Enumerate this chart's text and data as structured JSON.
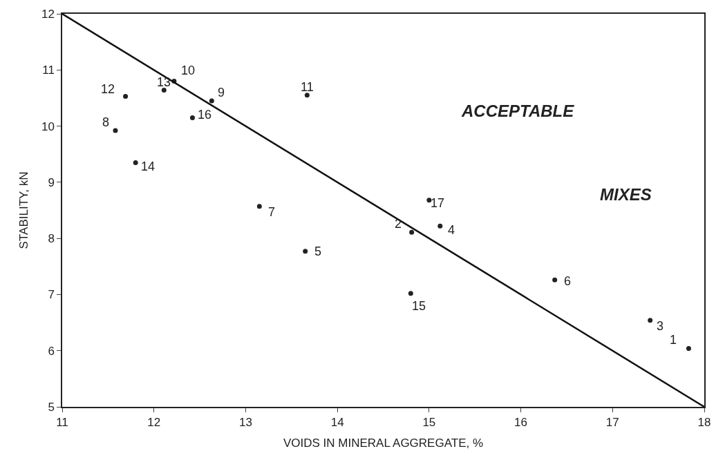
{
  "chart_data": {
    "type": "scatter",
    "xlabel": "VOIDS IN MINERAL AGGREGATE, %",
    "ylabel": "STABILITY, kN",
    "xlim": [
      11,
      18
    ],
    "xticks": [
      11,
      12,
      13,
      14,
      15,
      16,
      17,
      18
    ],
    "ylim": [
      5,
      12
    ],
    "yticks": [
      5,
      6,
      7,
      8,
      9,
      10,
      11,
      12
    ],
    "series": [
      {
        "marker": "circle",
        "color": "#222222",
        "x": [
          17.83,
          14.81,
          17.41,
          15.12,
          13.65,
          16.37,
          13.15,
          11.58,
          12.63,
          12.22,
          13.67,
          11.69,
          12.11,
          11.8,
          14.8,
          12.42,
          15.0
        ],
        "values": [
          6.04,
          8.11,
          6.54,
          8.22,
          7.77,
          7.26,
          8.57,
          9.92,
          10.45,
          10.8,
          10.55,
          10.53,
          10.64,
          9.35,
          7.02,
          10.15,
          8.68
        ]
      },
      {
        "type": "line",
        "marker": "none",
        "color": "#111111",
        "x": [
          11,
          18
        ],
        "values": [
          12,
          5
        ]
      }
    ],
    "annotations": [
      {
        "text": "1",
        "x": 17.83,
        "y": 6.04
      },
      {
        "text": "2",
        "x": 14.81,
        "y": 8.11
      },
      {
        "text": "3",
        "x": 17.41,
        "y": 6.54
      },
      {
        "text": "4",
        "x": 15.12,
        "y": 8.22
      },
      {
        "text": "5",
        "x": 13.65,
        "y": 7.77
      },
      {
        "text": "6",
        "x": 16.37,
        "y": 7.26
      },
      {
        "text": "7",
        "x": 13.15,
        "y": 8.57
      },
      {
        "text": "8",
        "x": 11.58,
        "y": 9.92
      },
      {
        "text": "9",
        "x": 12.63,
        "y": 10.45
      },
      {
        "text": "10",
        "x": 12.22,
        "y": 10.8
      },
      {
        "text": "11",
        "x": 13.67,
        "y": 10.55
      },
      {
        "text": "12",
        "x": 11.69,
        "y": 10.53
      },
      {
        "text": "13",
        "x": 12.11,
        "y": 10.64
      },
      {
        "text": "14",
        "x": 11.8,
        "y": 9.35
      },
      {
        "text": "15",
        "x": 14.8,
        "y": 7.02
      },
      {
        "text": "16",
        "x": 12.42,
        "y": 10.15
      },
      {
        "text": "17",
        "x": 15.0,
        "y": 8.68
      },
      "ACCEPTABLE",
      "MIXES"
    ]
  }
}
